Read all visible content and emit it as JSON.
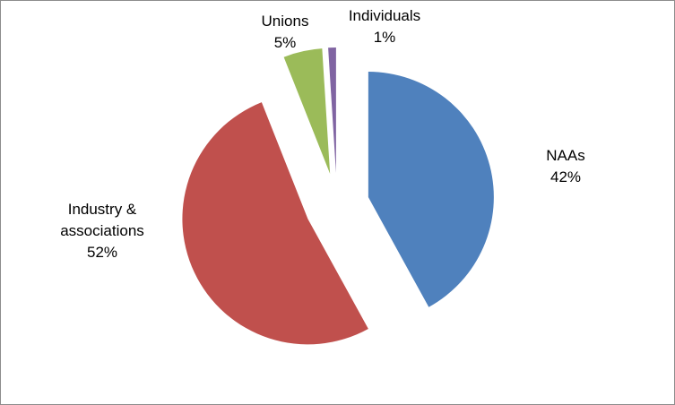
{
  "chart_data": {
    "type": "pie",
    "categories": [
      "NAAs",
      "Industry & associations",
      "Unions",
      "Individuals"
    ],
    "values": [
      42,
      52,
      5,
      1
    ],
    "value_labels": [
      "42%",
      "52%",
      "5%",
      "1%"
    ],
    "colors": [
      "#4f81bd",
      "#c0504d",
      "#9bbb59",
      "#8064a2"
    ],
    "exploded": true
  }
}
